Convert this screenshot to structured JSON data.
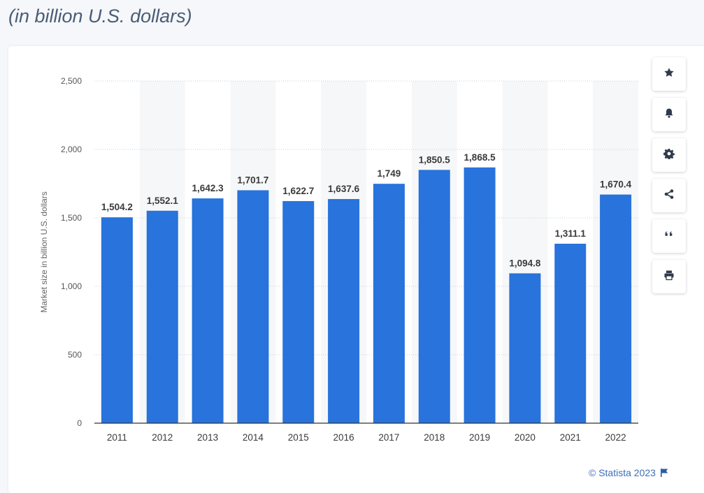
{
  "header": {
    "subtitle": "(in billion U.S. dollars)"
  },
  "toolbar": {
    "buttons": [
      {
        "name": "star-icon"
      },
      {
        "name": "bell-icon"
      },
      {
        "name": "gear-icon"
      },
      {
        "name": "share-icon"
      },
      {
        "name": "quote-icon"
      },
      {
        "name": "print-icon"
      }
    ]
  },
  "footer": {
    "credit": "© Statista 2023"
  },
  "colors": {
    "bar": "#2873dc",
    "gridline": "#c9cfd6",
    "band": "#f6f7f9",
    "label": "#3a3a3a",
    "axis": "#555555"
  },
  "chart_data": {
    "type": "bar",
    "categories": [
      "2011",
      "2012",
      "2013",
      "2014",
      "2015",
      "2016",
      "2017",
      "2018",
      "2019",
      "2020",
      "2021",
      "2022"
    ],
    "values": [
      1504.2,
      1552.1,
      1642.3,
      1701.7,
      1622.7,
      1637.6,
      1749,
      1850.5,
      1868.5,
      1094.8,
      1311.1,
      1670.4
    ],
    "value_labels": [
      "1,504.2",
      "1,552.1",
      "1,642.3",
      "1,701.7",
      "1,622.7",
      "1,637.6",
      "1,749",
      "1,850.5",
      "1,868.5",
      "1,094.8",
      "1,311.1",
      "1,670.4"
    ],
    "yticks": [
      0,
      500,
      1000,
      1500,
      2000,
      2500
    ],
    "ytick_labels": [
      "0",
      "500",
      "1,000",
      "1,500",
      "2,000",
      "2,500"
    ],
    "ylabel": "Market size in billion U.S. dollars",
    "xlabel": "",
    "ylim": [
      0,
      2500
    ],
    "grid": true
  }
}
